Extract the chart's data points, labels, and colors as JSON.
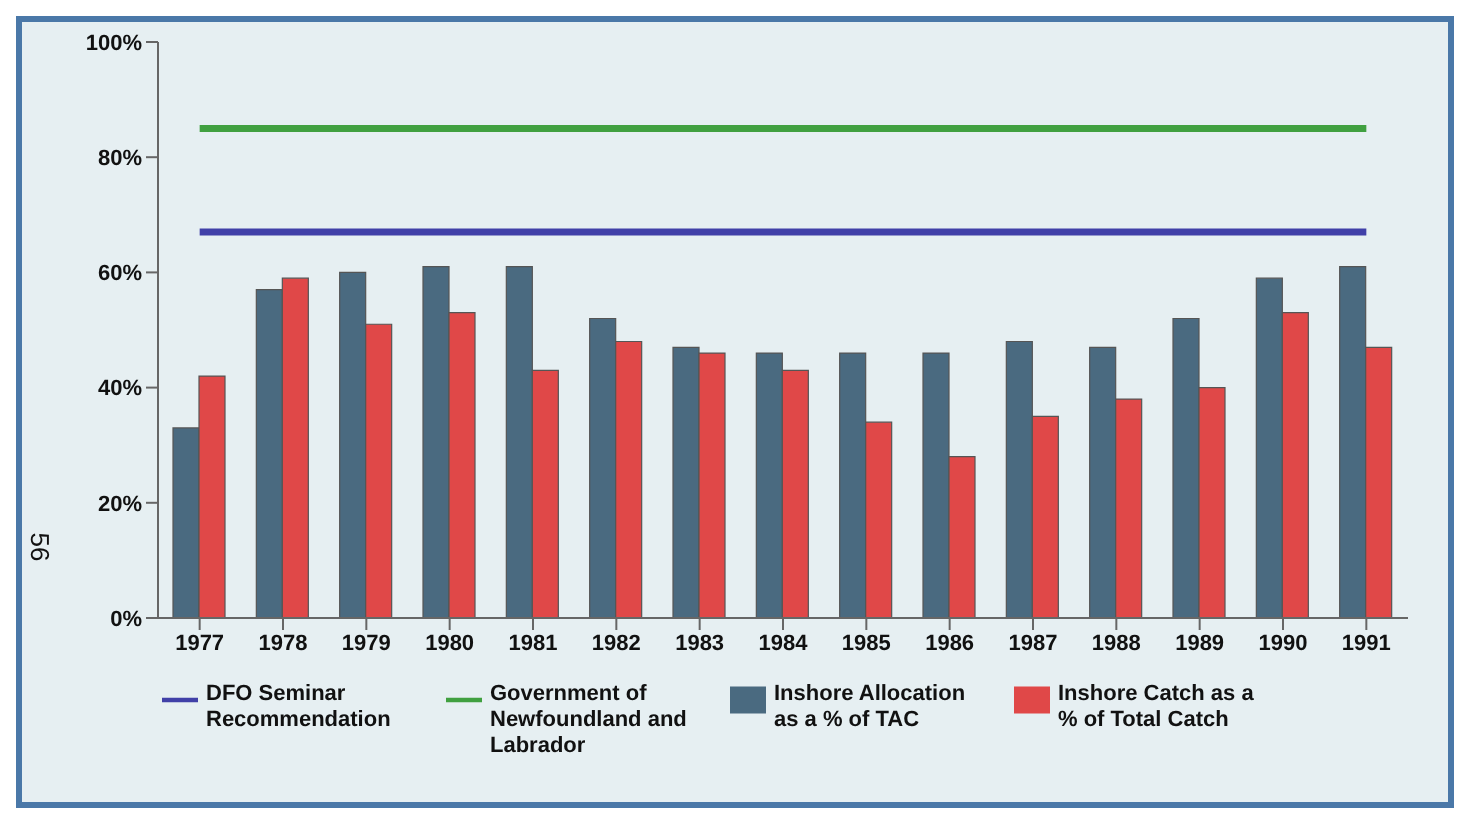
{
  "chart_data": {
    "type": "bar",
    "categories": [
      "1977",
      "1978",
      "1979",
      "1980",
      "1981",
      "1982",
      "1983",
      "1984",
      "1985",
      "1986",
      "1987",
      "1988",
      "1989",
      "1990",
      "1991"
    ],
    "series": [
      {
        "name": "Inshore Allocation as a % of TAC",
        "color": "#4a6a80",
        "values": [
          33,
          57,
          60,
          61,
          61,
          52,
          47,
          46,
          46,
          46,
          48,
          47,
          52,
          59,
          61
        ]
      },
      {
        "name": "Inshore Catch as a % of Total Catch",
        "color": "#e04848",
        "values": [
          42,
          59,
          51,
          53,
          43,
          48,
          46,
          43,
          34,
          28,
          35,
          38,
          40,
          53,
          47
        ]
      },
      {
        "name": "DFO Seminar Recommendation",
        "type": "line",
        "color": "#4040a8",
        "values": [
          67,
          67,
          67,
          67,
          67,
          67,
          67,
          67,
          67,
          67,
          67,
          67,
          67,
          67,
          67
        ]
      },
      {
        "name": "Government of Newfoundland and Labrador",
        "type": "line",
        "color": "#40a040",
        "values": [
          85,
          85,
          85,
          85,
          85,
          85,
          85,
          85,
          85,
          85,
          85,
          85,
          85,
          85,
          85
        ]
      }
    ],
    "ylim": [
      0,
      100
    ],
    "yticks": [
      {
        "value": 0,
        "label": "0%"
      },
      {
        "value": 20,
        "label": "20%"
      },
      {
        "value": 40,
        "label": "40%"
      },
      {
        "value": 60,
        "label": "60%"
      },
      {
        "value": 80,
        "label": "80%"
      },
      {
        "value": 100,
        "label": "100%"
      }
    ],
    "grid": false,
    "legend": "bottom",
    "marker": "none",
    "line_style": "solid",
    "annotations": [
      "56"
    ]
  }
}
